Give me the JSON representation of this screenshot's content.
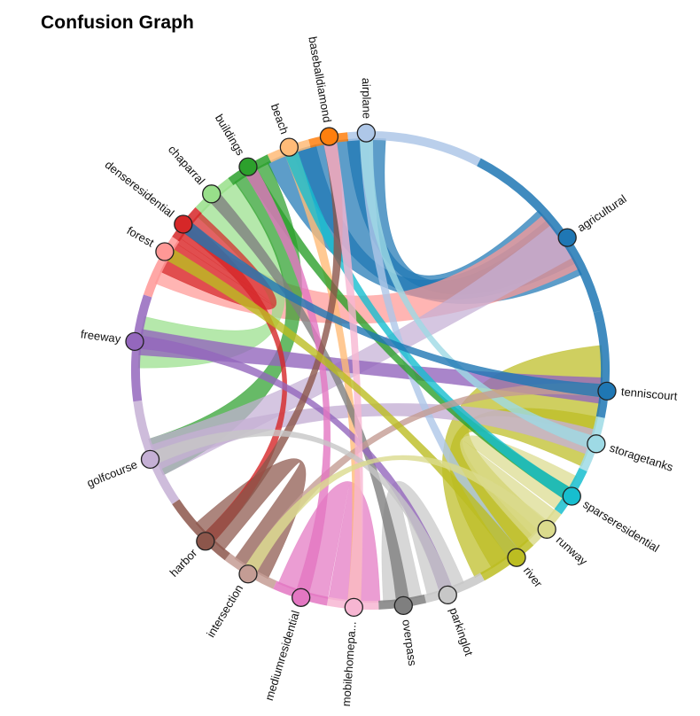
{
  "title": "Confusion Graph",
  "chart_data": {
    "type": "chord",
    "title": "Confusion Graph",
    "nodes": [
      {
        "name": "agricultural",
        "color": "#1f77b4"
      },
      {
        "name": "tenniscourt",
        "color": "#1f77b4"
      },
      {
        "name": "storagetanks",
        "color": "#9edae5"
      },
      {
        "name": "sparseresidential",
        "color": "#17becf"
      },
      {
        "name": "runway",
        "color": "#dbdb8d"
      },
      {
        "name": "river",
        "color": "#bcbd22"
      },
      {
        "name": "parkinglot",
        "color": "#c7c7c7"
      },
      {
        "name": "overpass",
        "color": "#7f7f7f"
      },
      {
        "name": "mobilehomepa...",
        "color": "#f7b6d2"
      },
      {
        "name": "mediumresidential",
        "color": "#e377c2"
      },
      {
        "name": "intersection",
        "color": "#c49c94"
      },
      {
        "name": "harbor",
        "color": "#8c564b"
      },
      {
        "name": "golfcourse",
        "color": "#c5b0d5"
      },
      {
        "name": "freeway",
        "color": "#9467bd"
      },
      {
        "name": "forest",
        "color": "#ff9896"
      },
      {
        "name": "denseresidential",
        "color": "#d62728"
      },
      {
        "name": "chaparral",
        "color": "#98df8a"
      },
      {
        "name": "buildings",
        "color": "#2ca02c"
      },
      {
        "name": "beach",
        "color": "#ffbb78"
      },
      {
        "name": "baseballdiamond",
        "color": "#ff7f0e"
      },
      {
        "name": "airplane",
        "color": "#aec7e8"
      }
    ],
    "ribbons": [
      {
        "source": "agricultural",
        "target": "baseballdiamond",
        "value": 6
      },
      {
        "source": "agricultural",
        "target": "beach",
        "value": 4
      },
      {
        "source": "agricultural",
        "target": "airplane",
        "value": 3
      },
      {
        "source": "river",
        "target": "tenniscourt",
        "value": 7
      },
      {
        "source": "river",
        "target": "storagetanks",
        "value": 4
      },
      {
        "source": "runway",
        "target": "sparseresidential",
        "value": 3
      },
      {
        "source": "forest",
        "target": "agricultural",
        "value": 5
      },
      {
        "source": "chaparral",
        "target": "freeway",
        "value": 4
      },
      {
        "source": "buildings",
        "target": "golfcourse",
        "value": 3
      },
      {
        "source": "golfcourse",
        "target": "agricultural",
        "value": 3
      },
      {
        "source": "harbor",
        "target": "intersection",
        "value": 3
      },
      {
        "source": "mediumresidential",
        "target": "mobilehomepa...",
        "value": 4
      },
      {
        "source": "parkinglot",
        "target": "overpass",
        "value": 3
      },
      {
        "source": "denseresidential",
        "target": "forest",
        "value": 3
      },
      {
        "source": "freeway",
        "target": "tenniscourt",
        "value": 2
      },
      {
        "source": "golfcourse",
        "target": "storagetanks",
        "value": 2
      },
      {
        "source": "airplane",
        "target": "river",
        "value": 1
      },
      {
        "source": "beach",
        "target": "mobilehomepa...",
        "value": 1
      },
      {
        "source": "buildings",
        "target": "sparseresidential",
        "value": 1
      },
      {
        "source": "denseresidential",
        "target": "harbor",
        "value": 1
      },
      {
        "source": "overpass",
        "target": "chaparral",
        "value": 1
      },
      {
        "source": "freeway",
        "target": "parkinglot",
        "value": 1
      },
      {
        "source": "sparseresidential",
        "target": "beach",
        "value": 1
      },
      {
        "source": "storagetanks",
        "target": "airplane",
        "value": 1
      },
      {
        "source": "intersection",
        "target": "tenniscourt",
        "value": 1
      },
      {
        "source": "mediumresidential",
        "target": "buildings",
        "value": 1
      },
      {
        "source": "harbor",
        "target": "baseballdiamond",
        "value": 1
      },
      {
        "source": "tenniscourt",
        "target": "denseresidential",
        "value": 1
      },
      {
        "source": "mobilehomepa...",
        "target": "baseballdiamond",
        "value": 1
      },
      {
        "source": "river",
        "target": "forest",
        "value": 1
      },
      {
        "source": "parkinglot",
        "target": "golfcourse",
        "value": 1
      },
      {
        "source": "runway",
        "target": "intersection",
        "value": 1
      }
    ]
  }
}
